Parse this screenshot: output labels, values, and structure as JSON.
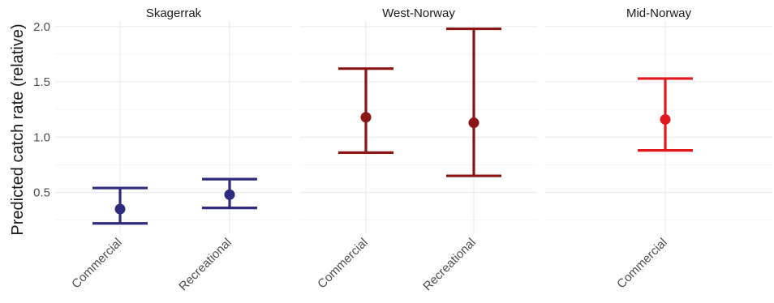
{
  "chart_data": {
    "type": "errorbar",
    "ylabel": "Predicted catch rate (relative)",
    "ylim": [
      0.13,
      2.05
    ],
    "yticks": [
      0.5,
      1.0,
      1.5,
      2.0
    ],
    "ytick_labels": [
      "0.5",
      "1.0",
      "1.5",
      "2.0"
    ],
    "grid": true,
    "legend": "none",
    "panels": [
      {
        "title": "Skagerrak",
        "color": "#2e2a7e",
        "categories": [
          "Commercial",
          "Recreational"
        ],
        "points": [
          {
            "category": "Commercial",
            "estimate": 0.35,
            "lower": 0.22,
            "upper": 0.54
          },
          {
            "category": "Recreational",
            "estimate": 0.48,
            "lower": 0.36,
            "upper": 0.62
          }
        ]
      },
      {
        "title": "West-Norway",
        "color": "#8b1414",
        "categories": [
          "Commercial",
          "Recreational"
        ],
        "points": [
          {
            "category": "Commercial",
            "estimate": 1.18,
            "lower": 0.86,
            "upper": 1.62
          },
          {
            "category": "Recreational",
            "estimate": 1.13,
            "lower": 0.65,
            "upper": 1.98
          }
        ]
      },
      {
        "title": "Mid-Norway",
        "color": "#e0191e",
        "categories": [
          "Commercial"
        ],
        "points": [
          {
            "category": "Commercial",
            "estimate": 1.16,
            "lower": 0.88,
            "upper": 1.53
          }
        ]
      }
    ]
  }
}
